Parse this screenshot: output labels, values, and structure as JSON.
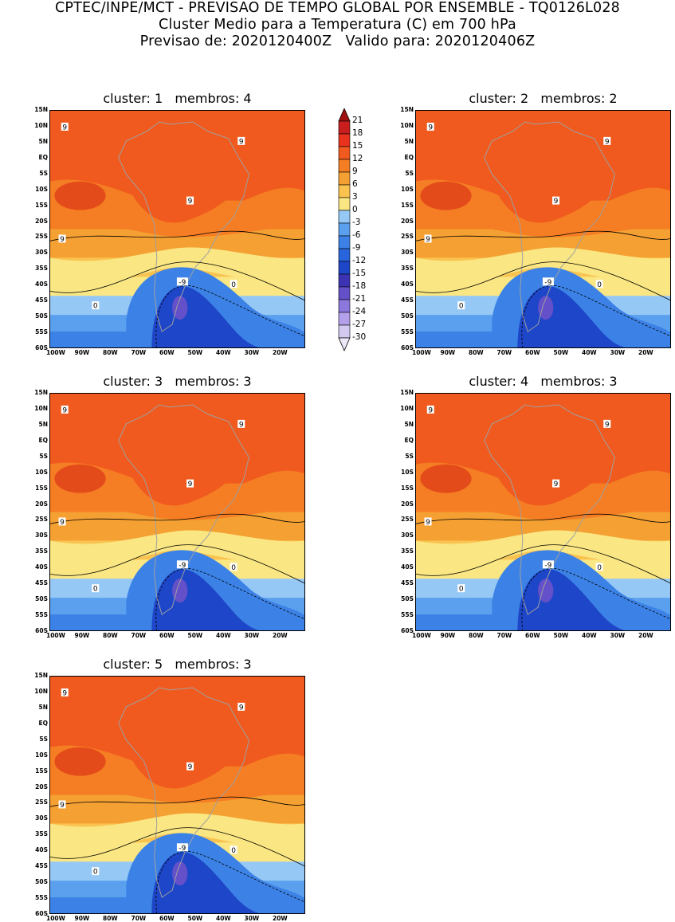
{
  "header": {
    "line1": "CPTEC/INPE/MCT - PREVISAO DE TEMPO GLOBAL POR ENSEMBLE - TQ0126L028",
    "line2": "Cluster Medio para a Temperatura (C) em 700 hPa",
    "line3": "Previsao de: 2020120400Z   Valido para: 2020120406Z"
  },
  "axes": {
    "lat_labels": [
      "15N",
      "10N",
      "5N",
      "EQ",
      "5S",
      "10S",
      "15S",
      "20S",
      "25S",
      "30S",
      "35S",
      "40S",
      "45S",
      "50S",
      "55S",
      "60S"
    ],
    "lon_labels": [
      "100W",
      "90W",
      "80W",
      "70W",
      "60W",
      "50W",
      "40W",
      "30W",
      "20W"
    ]
  },
  "colorbar": {
    "levels": [
      "21",
      "18",
      "15",
      "12",
      "9",
      "6",
      "3",
      "0",
      "-3",
      "-6",
      "-9",
      "-12",
      "-15",
      "-18",
      "-21",
      "-24",
      "-27",
      "-30"
    ],
    "colors": [
      "#a01010",
      "#c81e1e",
      "#e8321e",
      "#f05a1e",
      "#f57d23",
      "#f5a032",
      "#fac350",
      "#fae682",
      "#96c8f5",
      "#5aa0ee",
      "#3c82e6",
      "#2864dc",
      "#1e46c8",
      "#3c32b4",
      "#6450c8",
      "#8c78dc",
      "#b4a0ea",
      "#d2c8f0",
      "#ece8f8"
    ]
  },
  "panels": [
    {
      "title": "cluster: 1   membros: 4"
    },
    {
      "title": "cluster: 2   membros: 2"
    },
    {
      "title": "cluster: 3   membros: 3"
    },
    {
      "title": "cluster: 4   membros: 3"
    },
    {
      "title": "cluster: 5   membros: 3"
    }
  ],
  "contour_labels": {
    "warm": "9",
    "zero": "0",
    "cold": "-9"
  }
}
